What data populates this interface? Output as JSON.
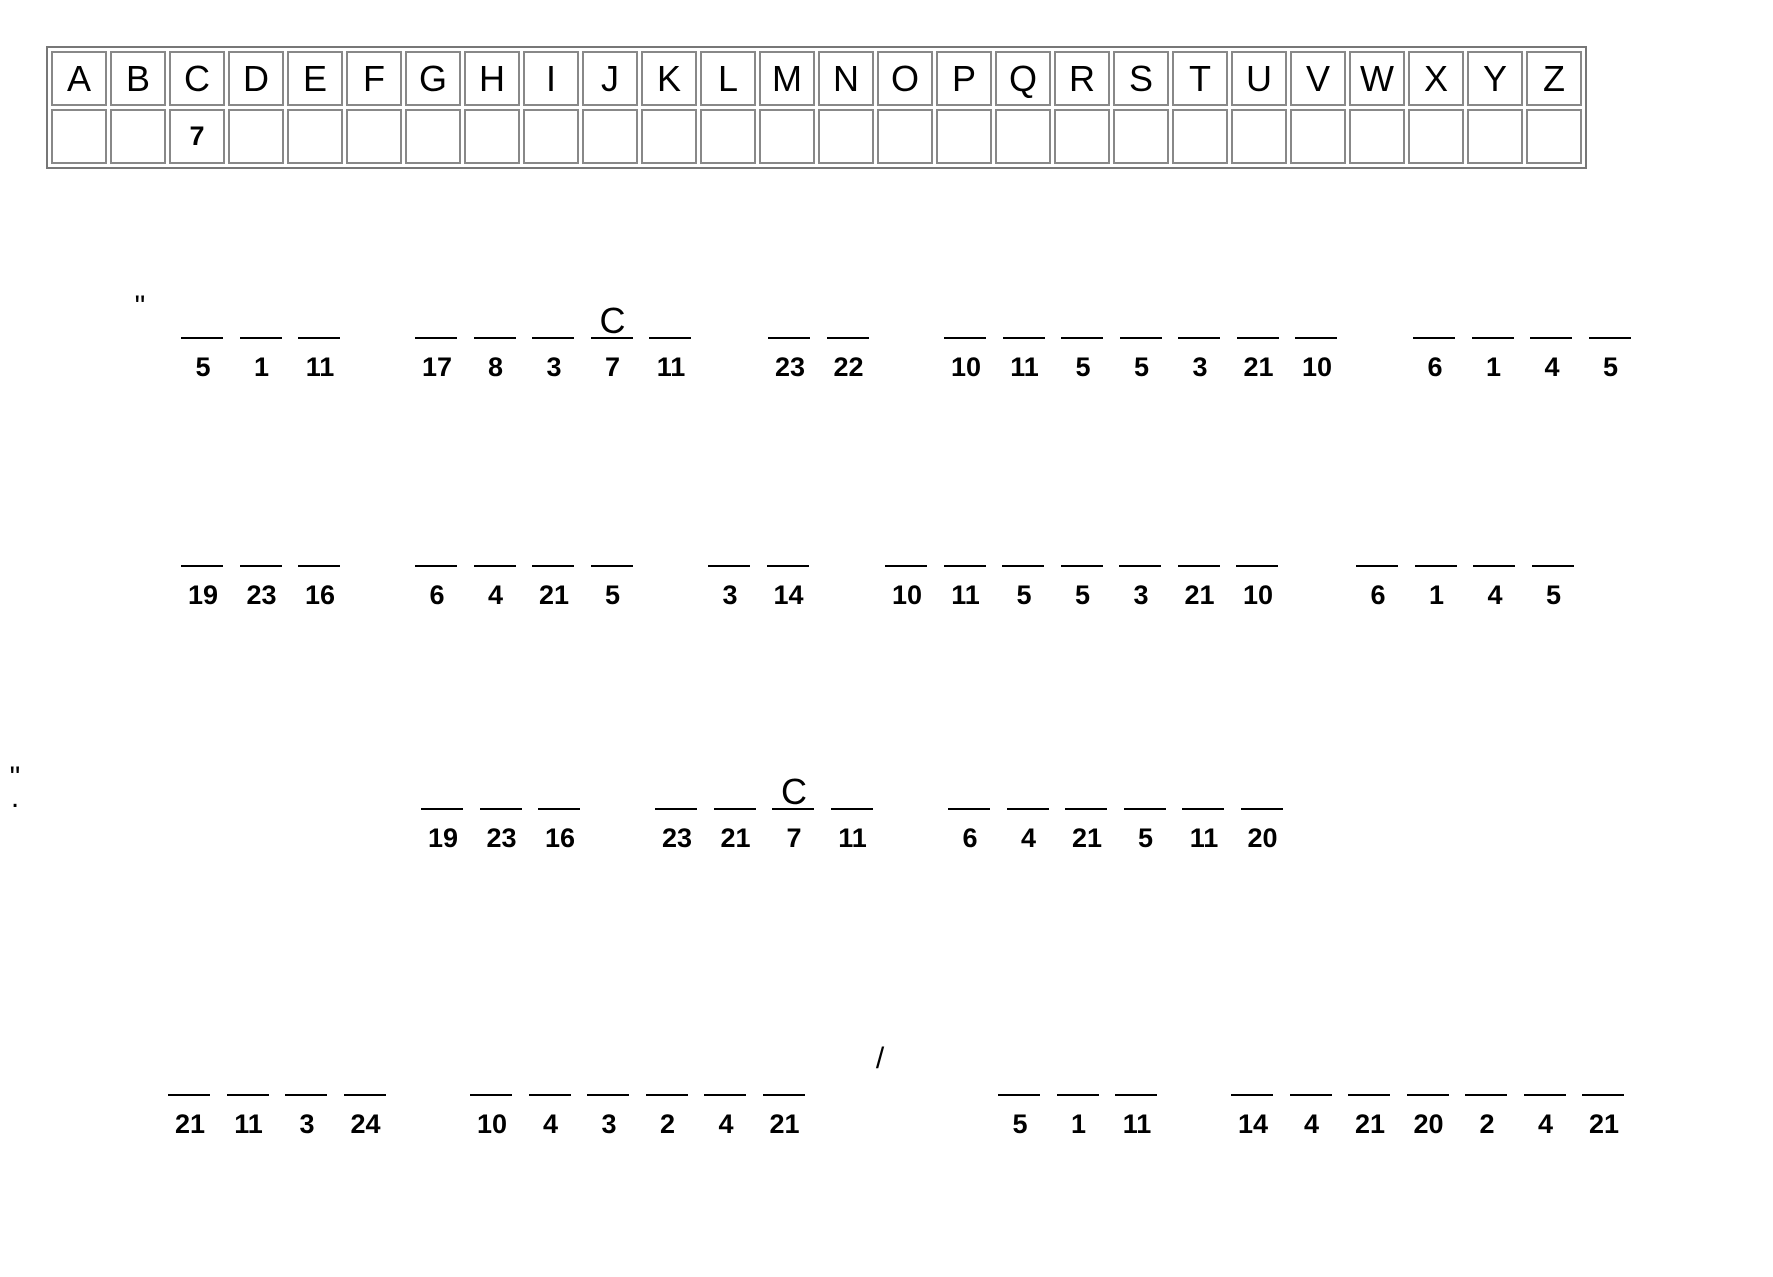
{
  "key": {
    "letters": [
      "A",
      "B",
      "C",
      "D",
      "E",
      "F",
      "G",
      "H",
      "I",
      "J",
      "K",
      "L",
      "M",
      "N",
      "O",
      "P",
      "Q",
      "R",
      "S",
      "T",
      "U",
      "V",
      "W",
      "X",
      "Y",
      "Z"
    ],
    "values": [
      "",
      "",
      "7",
      "",
      "",
      "",
      "",
      "",
      "",
      "",
      "",
      "",
      "",
      "",
      "",
      "",
      "",
      "",
      "",
      "",
      "",
      "",
      "",
      "",
      "",
      ""
    ]
  },
  "lines": [
    {
      "items": [
        {
          "type": "punct",
          "text": "\""
        },
        {
          "type": "word",
          "cells": [
            {
              "n": "5",
              "l": ""
            },
            {
              "n": "1",
              "l": ""
            },
            {
              "n": "11",
              "l": ""
            }
          ]
        },
        {
          "type": "word",
          "cells": [
            {
              "n": "17",
              "l": ""
            },
            {
              "n": "8",
              "l": ""
            },
            {
              "n": "3",
              "l": ""
            },
            {
              "n": "7",
              "l": "C"
            },
            {
              "n": "11",
              "l": ""
            }
          ]
        },
        {
          "type": "word",
          "cells": [
            {
              "n": "23",
              "l": ""
            },
            {
              "n": "22",
              "l": ""
            }
          ]
        },
        {
          "type": "word",
          "cells": [
            {
              "n": "10",
              "l": ""
            },
            {
              "n": "11",
              "l": ""
            },
            {
              "n": "5",
              "l": ""
            },
            {
              "n": "5",
              "l": ""
            },
            {
              "n": "3",
              "l": ""
            },
            {
              "n": "21",
              "l": ""
            },
            {
              "n": "10",
              "l": ""
            }
          ]
        },
        {
          "type": "word",
          "cells": [
            {
              "n": "6",
              "l": ""
            },
            {
              "n": "1",
              "l": ""
            },
            {
              "n": "4",
              "l": ""
            },
            {
              "n": "5",
              "l": ""
            }
          ]
        }
      ]
    },
    {
      "items": [
        {
          "type": "word",
          "cells": [
            {
              "n": "19",
              "l": ""
            },
            {
              "n": "23",
              "l": ""
            },
            {
              "n": "16",
              "l": ""
            }
          ]
        },
        {
          "type": "word",
          "cells": [
            {
              "n": "6",
              "l": ""
            },
            {
              "n": "4",
              "l": ""
            },
            {
              "n": "21",
              "l": ""
            },
            {
              "n": "5",
              "l": ""
            }
          ]
        },
        {
          "type": "word",
          "cells": [
            {
              "n": "3",
              "l": ""
            },
            {
              "n": "14",
              "l": ""
            }
          ]
        },
        {
          "type": "word",
          "cells": [
            {
              "n": "10",
              "l": ""
            },
            {
              "n": "11",
              "l": ""
            },
            {
              "n": "5",
              "l": ""
            },
            {
              "n": "5",
              "l": ""
            },
            {
              "n": "3",
              "l": ""
            },
            {
              "n": "21",
              "l": ""
            },
            {
              "n": "10",
              "l": ""
            }
          ]
        },
        {
          "type": "word",
          "cells": [
            {
              "n": "6",
              "l": ""
            },
            {
              "n": "1",
              "l": ""
            },
            {
              "n": "4",
              "l": ""
            },
            {
              "n": "5",
              "l": ""
            }
          ]
        }
      ]
    },
    {
      "items": [
        {
          "type": "word",
          "cells": [
            {
              "n": "19",
              "l": ""
            },
            {
              "n": "23",
              "l": ""
            },
            {
              "n": "16",
              "l": ""
            }
          ]
        },
        {
          "type": "word",
          "cells": [
            {
              "n": "23",
              "l": ""
            },
            {
              "n": "21",
              "l": ""
            },
            {
              "n": "7",
              "l": "C"
            },
            {
              "n": "11",
              "l": ""
            }
          ]
        },
        {
          "type": "word",
          "cells": [
            {
              "n": "6",
              "l": ""
            },
            {
              "n": "4",
              "l": ""
            },
            {
              "n": "21",
              "l": ""
            },
            {
              "n": "5",
              "l": ""
            },
            {
              "n": "11",
              "l": ""
            },
            {
              "n": "20",
              "l": ""
            }
          ]
        },
        {
          "type": "punct",
          "text": "."
        },
        {
          "type": "punct",
          "text": "\""
        }
      ]
    },
    {
      "items": [
        {
          "type": "word",
          "cells": [
            {
              "n": "21",
              "l": ""
            },
            {
              "n": "11",
              "l": ""
            },
            {
              "n": "3",
              "l": ""
            },
            {
              "n": "24",
              "l": ""
            }
          ]
        },
        {
          "type": "word",
          "cells": [
            {
              "n": "10",
              "l": ""
            },
            {
              "n": "4",
              "l": ""
            },
            {
              "n": "3",
              "l": ""
            },
            {
              "n": "2",
              "l": ""
            },
            {
              "n": "4",
              "l": ""
            },
            {
              "n": "21",
              "l": ""
            }
          ]
        },
        {
          "type": "punct",
          "text": "/"
        },
        {
          "type": "word",
          "cells": [
            {
              "n": "5",
              "l": ""
            },
            {
              "n": "1",
              "l": ""
            },
            {
              "n": "11",
              "l": ""
            }
          ]
        },
        {
          "type": "word",
          "cells": [
            {
              "n": "14",
              "l": ""
            },
            {
              "n": "4",
              "l": ""
            },
            {
              "n": "21",
              "l": ""
            },
            {
              "n": "20",
              "l": ""
            },
            {
              "n": "2",
              "l": ""
            },
            {
              "n": "4",
              "l": ""
            },
            {
              "n": "21",
              "l": ""
            }
          ]
        }
      ]
    }
  ]
}
